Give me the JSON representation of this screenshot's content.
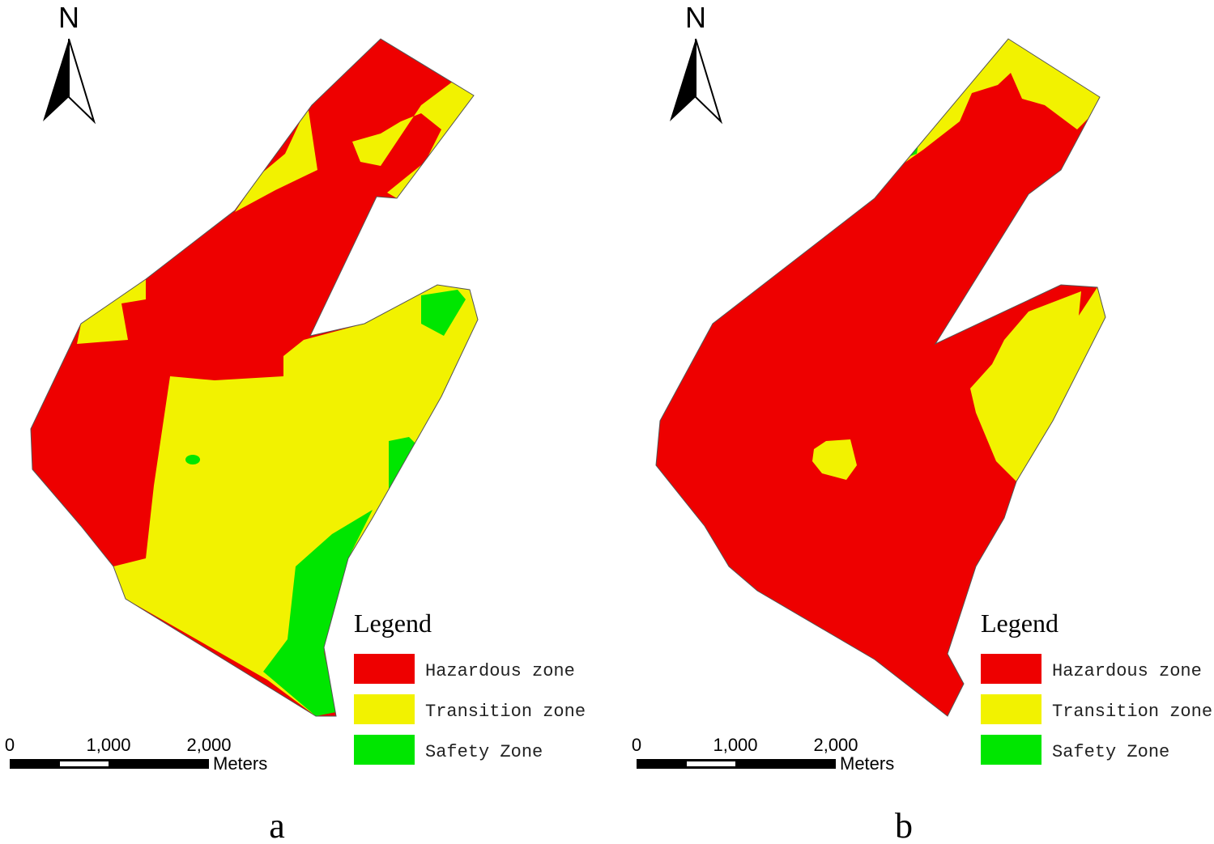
{
  "panels": [
    {
      "label": "a",
      "north": "N",
      "legend": {
        "title": "Legend",
        "items": [
          {
            "label": "Hazardous zone",
            "color": "#ee0000"
          },
          {
            "label": "Transition zone",
            "color": "#f2f200"
          },
          {
            "label": "Safety Zone",
            "color": "#00e600"
          }
        ]
      },
      "scale_bar": {
        "labels": [
          "0",
          "1,000",
          "2,000"
        ],
        "unit": "Meters"
      }
    },
    {
      "label": "b",
      "north": "N",
      "legend": {
        "title": "Legend",
        "items": [
          {
            "label": "Hazardous zone",
            "color": "#ee0000"
          },
          {
            "label": "Transition zone",
            "color": "#f2f200"
          },
          {
            "label": "Safety Zone",
            "color": "#00e600"
          }
        ]
      },
      "scale_bar": {
        "labels": [
          "0",
          "1,000",
          "2,000"
        ],
        "unit": "Meters"
      }
    }
  ]
}
